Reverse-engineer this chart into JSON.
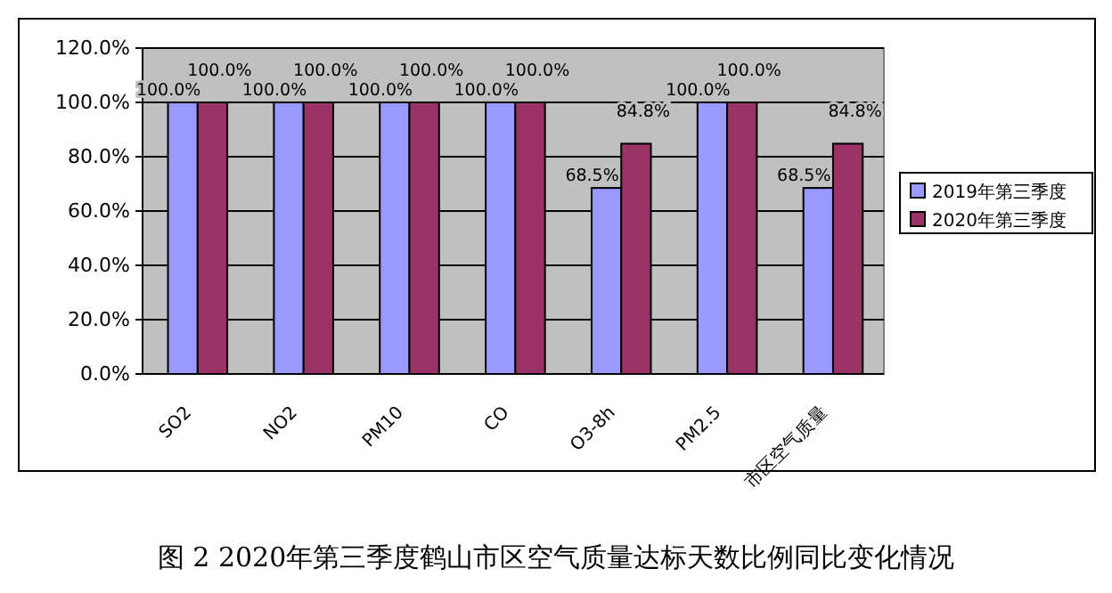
{
  "chart_data": {
    "type": "bar",
    "title": "图 2  2020年第三季度鹤山市区空气质量达标天数比例同比变化情况",
    "categories": [
      "SO2",
      "NO2",
      "PM10",
      "CO",
      "O3-8h",
      "PM2.5",
      "市区空气质量"
    ],
    "series": [
      {
        "name": "2019年第三季度",
        "color": "#9999ff",
        "values": [
          100,
          100,
          100,
          100,
          68.5,
          100,
          68.5
        ],
        "value_labels": [
          "100.0%",
          "100.0%",
          "100.0%",
          "100.0%",
          "68.5%",
          "100.0%",
          "68.5%"
        ]
      },
      {
        "name": "2020年第三季度",
        "color": "#993366",
        "values": [
          100,
          100,
          100,
          100,
          84.8,
          100,
          84.8
        ],
        "value_labels": [
          "100.0%",
          "100.0%",
          "100.0%",
          "100.0%",
          "84.8%",
          "100.0%",
          "84.8%"
        ]
      }
    ],
    "ylim": [
      0,
      120
    ],
    "yticks": [
      {
        "value": 0,
        "label": "0.0%"
      },
      {
        "value": 20,
        "label": "20.0%"
      },
      {
        "value": 40,
        "label": "40.0%"
      },
      {
        "value": 60,
        "label": "60.0%"
      },
      {
        "value": 80,
        "label": "80.0%"
      },
      {
        "value": 100,
        "label": "100.0%"
      },
      {
        "value": 120,
        "label": "120.0%"
      }
    ],
    "grid": "y",
    "legend": "right"
  }
}
